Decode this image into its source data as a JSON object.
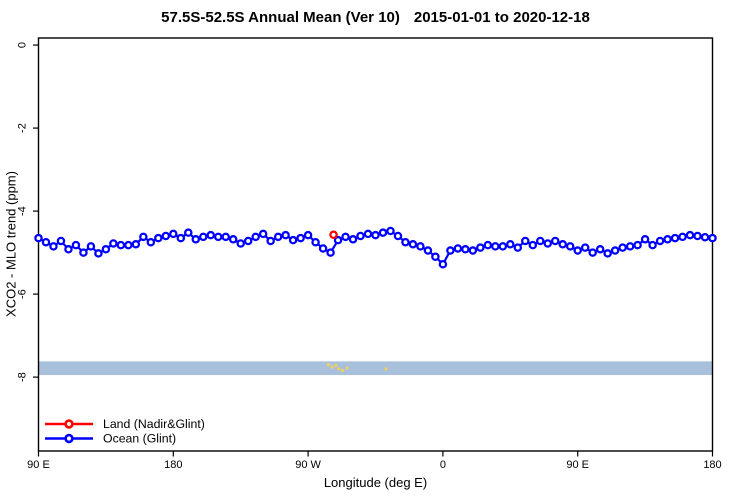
{
  "header": {
    "title": "57.5S-52.5S Annual Mean (Ver 10)",
    "date_range": "2015-01-01 to 2020-12-18"
  },
  "chart_data": {
    "type": "line",
    "title": "57.5S-52.5S Annual Mean (Ver 10)",
    "subtitle": "2015-01-01 to 2020-12-18",
    "xlabel": "Longitude (deg E)",
    "ylabel": "XCO2 - MLO trend (ppm)",
    "xlim": [
      90,
      540
    ],
    "ylim": [
      -9.78,
      0.17
    ],
    "grid": false,
    "x_ticks": [
      {
        "v": 90,
        "label": "90 E"
      },
      {
        "v": 180,
        "label": "180"
      },
      {
        "v": 270,
        "label": "90 W"
      },
      {
        "v": 360,
        "label": "0"
      },
      {
        "v": 450,
        "label": "90 E"
      },
      {
        "v": 540,
        "label": "180"
      }
    ],
    "y_ticks": [
      {
        "v": 0,
        "label": "0"
      },
      {
        "v": -2,
        "label": "-2"
      },
      {
        "v": -4,
        "label": "-4"
      },
      {
        "v": -6,
        "label": "-6"
      },
      {
        "v": -8,
        "label": "-8"
      }
    ],
    "reference_band": {
      "from": -7.62,
      "to": -7.95,
      "color": "#a9c0dd"
    },
    "band_marks": {
      "color": "#f0cf5f",
      "points": [
        {
          "x": 283.5,
          "v": -7.7
        },
        {
          "x": 286.0,
          "v": -7.76
        },
        {
          "x": 288.5,
          "v": -7.72
        },
        {
          "x": 290.5,
          "v": -7.8
        },
        {
          "x": 293.0,
          "v": -7.84
        },
        {
          "x": 296.0,
          "v": -7.78
        },
        {
          "x": 322.0,
          "v": -7.8
        }
      ]
    },
    "legend": {
      "position": "bottom-left"
    },
    "series": [
      {
        "name": "Land (Nadir&Glint)",
        "slug": "land",
        "color": "#ff0000",
        "z": 2,
        "x": [
          287
        ],
        "values": [
          -4.57
        ]
      },
      {
        "name": "Ocean (Glint)",
        "slug": "ocean",
        "color": "#0000ff",
        "z": 1,
        "x": [
          90,
          95,
          100,
          105,
          110,
          115,
          120,
          125,
          130,
          135,
          140,
          145,
          150,
          155,
          160,
          165,
          170,
          175,
          180,
          185,
          190,
          195,
          200,
          205,
          210,
          215,
          220,
          225,
          230,
          235,
          240,
          245,
          250,
          255,
          260,
          265,
          270,
          275,
          280,
          285,
          290,
          295,
          300,
          305,
          310,
          315,
          320,
          325,
          330,
          335,
          340,
          345,
          350,
          355,
          360,
          365,
          370,
          375,
          380,
          385,
          390,
          395,
          400,
          405,
          410,
          415,
          420,
          425,
          430,
          435,
          440,
          445,
          450,
          455,
          460,
          465,
          470,
          475,
          480,
          485,
          490,
          495,
          500,
          505,
          510,
          515,
          520,
          525,
          530,
          535,
          540
        ],
        "values": [
          -4.65,
          -4.75,
          -4.85,
          -4.72,
          -4.92,
          -4.82,
          -5.0,
          -4.85,
          -5.02,
          -4.92,
          -4.78,
          -4.82,
          -4.82,
          -4.8,
          -4.62,
          -4.75,
          -4.65,
          -4.6,
          -4.55,
          -4.65,
          -4.52,
          -4.68,
          -4.62,
          -4.58,
          -4.62,
          -4.62,
          -4.68,
          -4.78,
          -4.72,
          -4.62,
          -4.55,
          -4.72,
          -4.62,
          -4.58,
          -4.7,
          -4.65,
          -4.58,
          -4.75,
          -4.9,
          -5.0,
          -4.7,
          -4.62,
          -4.68,
          -4.6,
          -4.55,
          -4.58,
          -4.52,
          -4.48,
          -4.6,
          -4.75,
          -4.8,
          -4.85,
          -4.95,
          -5.1,
          -5.28,
          -4.95,
          -4.9,
          -4.92,
          -4.95,
          -4.88,
          -4.82,
          -4.85,
          -4.85,
          -4.8,
          -4.88,
          -4.72,
          -4.82,
          -4.72,
          -4.78,
          -4.72,
          -4.8,
          -4.85,
          -4.95,
          -4.88,
          -5.0,
          -4.92,
          -5.02,
          -4.95,
          -4.88,
          -4.85,
          -4.82,
          -4.68,
          -4.82,
          -4.72,
          -4.68,
          -4.65,
          -4.62,
          -4.58,
          -4.6,
          -4.63,
          -4.65
        ]
      }
    ]
  }
}
